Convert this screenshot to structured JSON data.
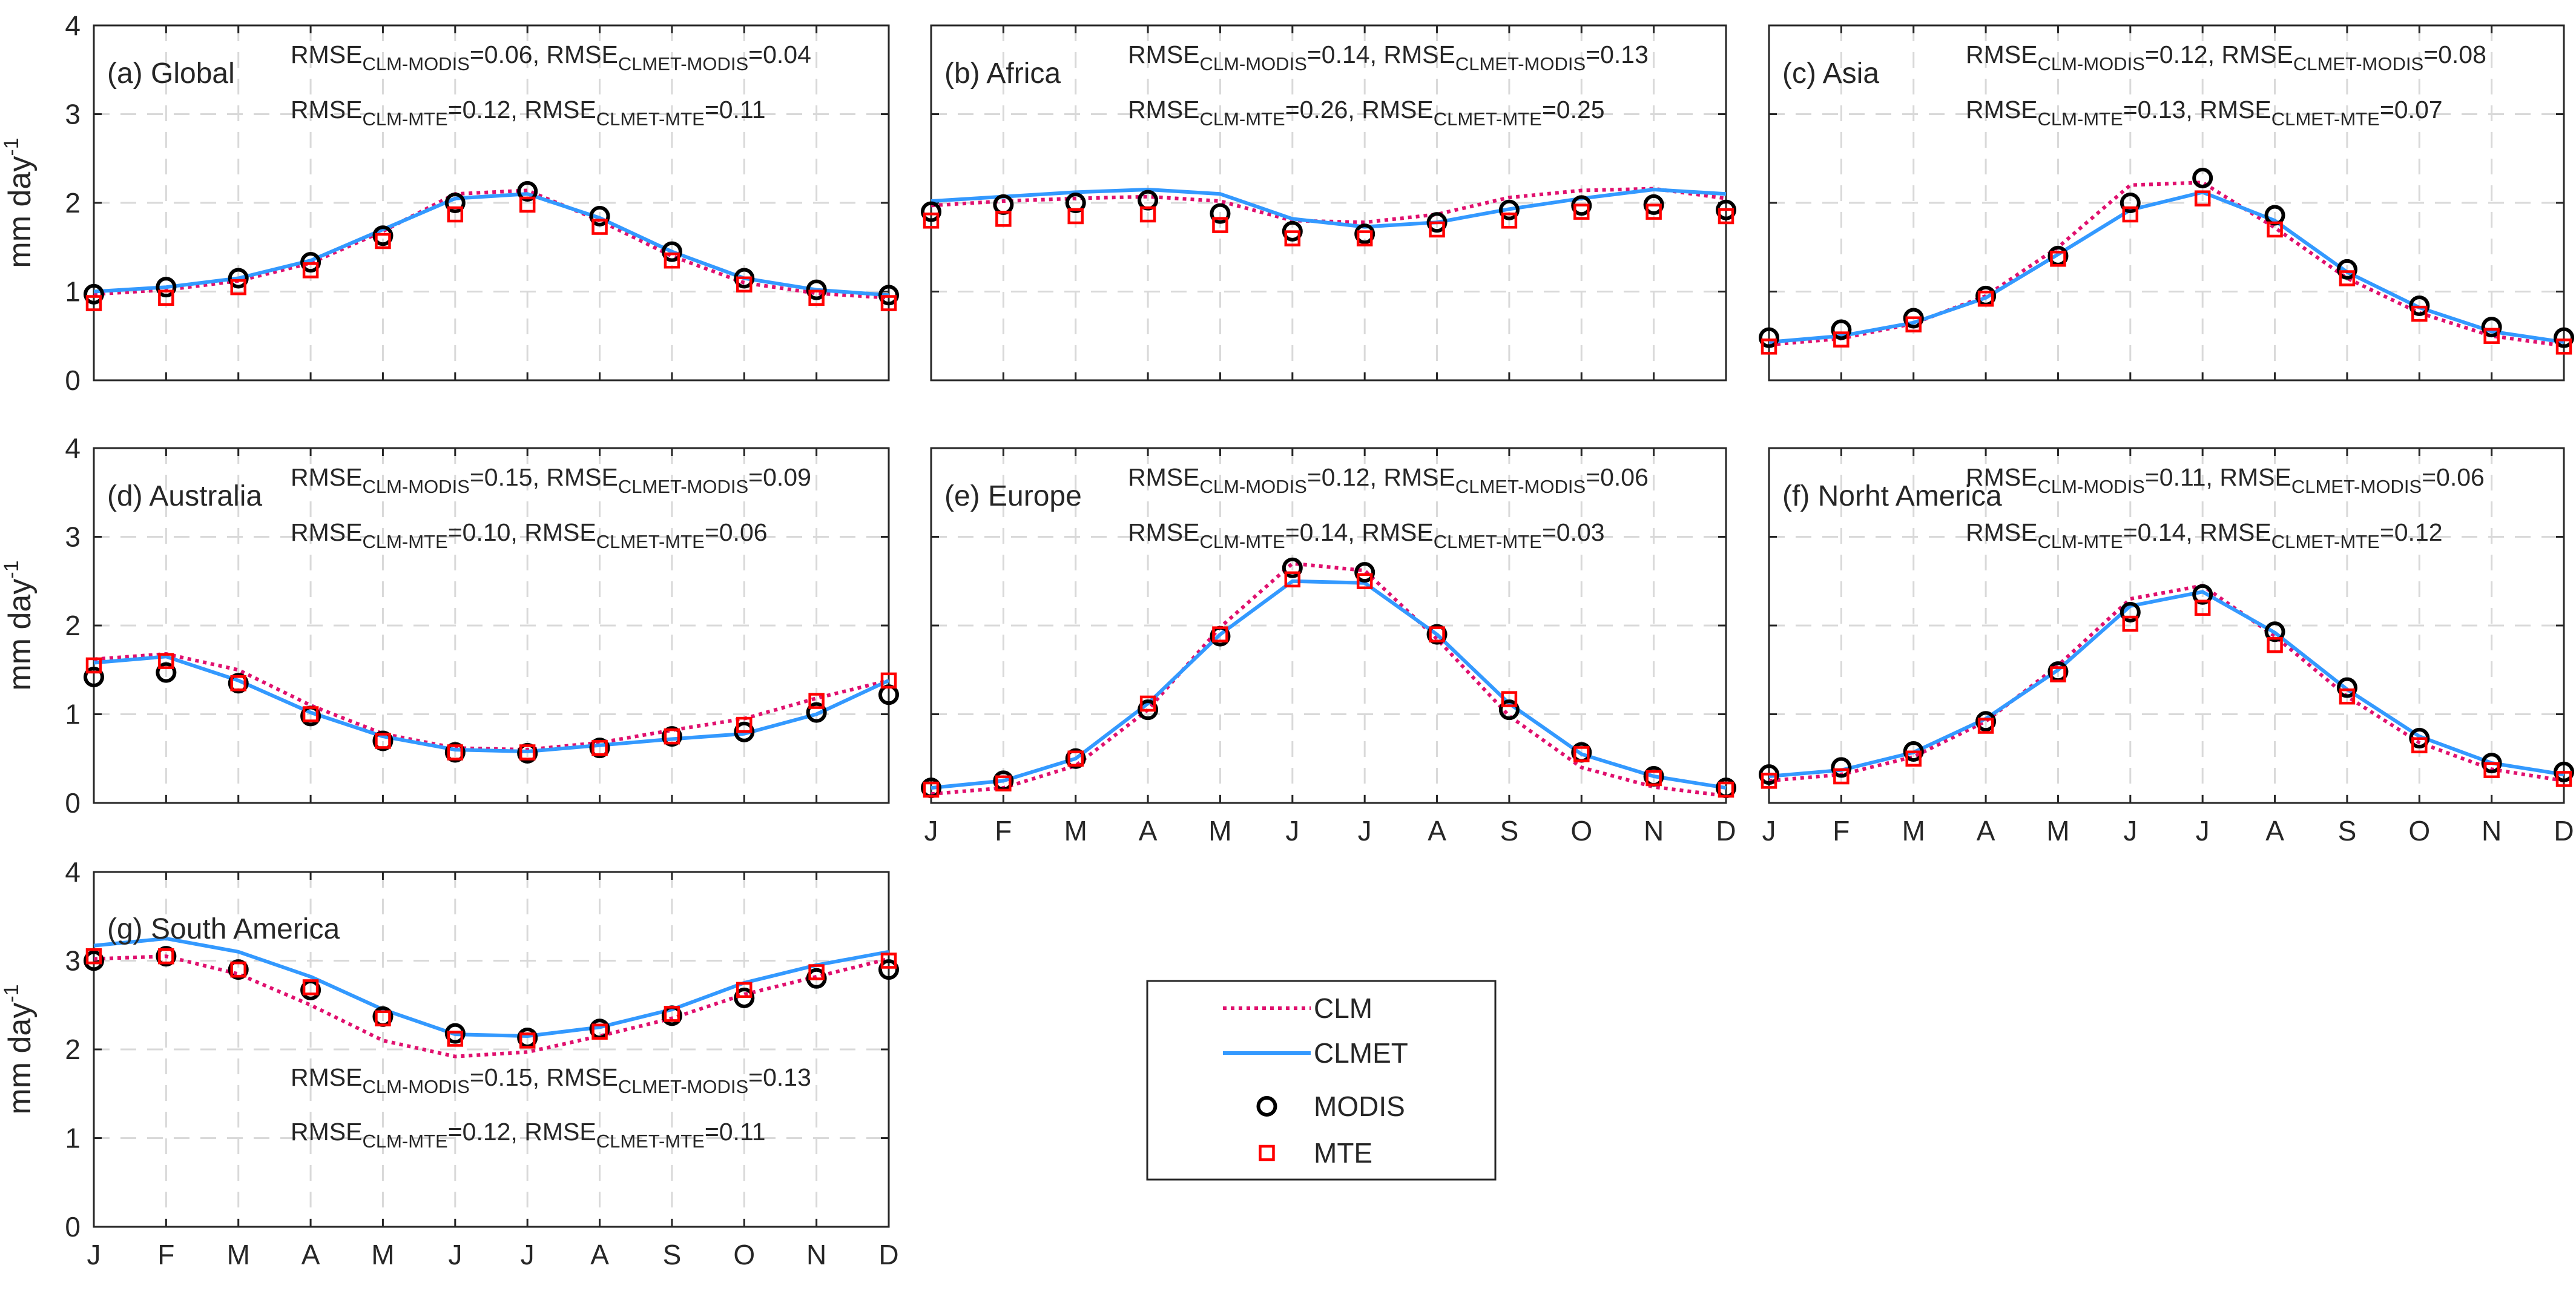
{
  "chart_data": {
    "type": "line",
    "ylabel": "mm day",
    "ylabel_sup": "-1",
    "ylim": [
      0,
      4
    ],
    "yticks": [
      "0",
      "1",
      "2",
      "3",
      "4"
    ],
    "categories": [
      "J",
      "F",
      "M",
      "A",
      "M",
      "J",
      "J",
      "A",
      "S",
      "O",
      "N",
      "D"
    ],
    "legend": [
      {
        "name": "CLM",
        "color": "#e0106e",
        "style": "dotted-line"
      },
      {
        "name": "CLMET",
        "color": "#3399ff",
        "style": "solid-line"
      },
      {
        "name": "MODIS",
        "color": "#000000",
        "style": "circle-marker"
      },
      {
        "name": "MTE",
        "color": "#ff0000",
        "style": "square-marker"
      }
    ],
    "panels": [
      {
        "title": "(a) Global",
        "rmse": [
          {
            "a_sub": "CLM-MODIS",
            "a_val": "=0.06, ",
            "b_sub": "CLMET-MODIS",
            "b_val": "=0.04"
          },
          {
            "a_sub": "CLM-MTE",
            "a_val": "=0.12, ",
            "b_sub": "CLMET-MTE",
            "b_val": "=0.11"
          }
        ],
        "rmse_position": "top",
        "series": {
          "CLM": [
            0.97,
            1.02,
            1.12,
            1.32,
            1.68,
            2.1,
            2.14,
            1.8,
            1.4,
            1.1,
            0.98,
            0.93
          ],
          "CLMET": [
            1.0,
            1.05,
            1.15,
            1.35,
            1.7,
            2.05,
            2.1,
            1.83,
            1.45,
            1.15,
            1.02,
            0.96
          ],
          "MODIS": [
            0.97,
            1.05,
            1.15,
            1.33,
            1.63,
            2.0,
            2.13,
            1.85,
            1.45,
            1.15,
            1.02,
            0.96
          ],
          "MTE": [
            0.87,
            0.93,
            1.05,
            1.24,
            1.57,
            1.87,
            1.98,
            1.73,
            1.35,
            1.08,
            0.93,
            0.87
          ]
        }
      },
      {
        "title": "(b) Africa",
        "rmse": [
          {
            "a_sub": "CLM-MODIS",
            "a_val": "=0.14, ",
            "b_sub": "CLMET-MODIS",
            "b_val": "=0.13"
          },
          {
            "a_sub": "CLM-MTE",
            "a_val": "=0.26, ",
            "b_sub": "CLMET-MTE",
            "b_val": "=0.25"
          }
        ],
        "rmse_position": "top",
        "series": {
          "CLM": [
            1.97,
            2.02,
            2.05,
            2.07,
            2.02,
            1.8,
            1.78,
            1.87,
            2.06,
            2.14,
            2.16,
            2.05
          ],
          "CLMET": [
            2.02,
            2.07,
            2.12,
            2.15,
            2.1,
            1.82,
            1.73,
            1.78,
            1.93,
            2.05,
            2.15,
            2.1
          ],
          "MODIS": [
            1.9,
            1.98,
            2.0,
            2.03,
            1.88,
            1.68,
            1.65,
            1.78,
            1.92,
            1.97,
            1.98,
            1.92
          ],
          "MTE": [
            1.8,
            1.82,
            1.85,
            1.87,
            1.75,
            1.6,
            1.6,
            1.7,
            1.8,
            1.9,
            1.9,
            1.85
          ]
        }
      },
      {
        "title": "(c) Asia",
        "rmse": [
          {
            "a_sub": "CLM-MODIS",
            "a_val": "=0.12, ",
            "b_sub": "CLMET-MODIS",
            "b_val": "=0.08"
          },
          {
            "a_sub": "CLM-MTE",
            "a_val": "=0.13, ",
            "b_sub": "CLMET-MTE",
            "b_val": "=0.07"
          }
        ],
        "rmse_position": "top",
        "series": {
          "CLM": [
            0.4,
            0.47,
            0.64,
            0.95,
            1.5,
            2.2,
            2.23,
            1.72,
            1.15,
            0.76,
            0.5,
            0.39
          ],
          "CLMET": [
            0.43,
            0.5,
            0.65,
            0.93,
            1.42,
            1.92,
            2.12,
            1.8,
            1.22,
            0.82,
            0.55,
            0.43
          ],
          "MODIS": [
            0.48,
            0.57,
            0.7,
            0.95,
            1.4,
            2.0,
            2.28,
            1.86,
            1.25,
            0.84,
            0.6,
            0.48
          ],
          "MTE": [
            0.38,
            0.46,
            0.63,
            0.92,
            1.37,
            1.87,
            2.05,
            1.7,
            1.15,
            0.75,
            0.5,
            0.38
          ]
        }
      },
      {
        "title": "(d) Australia",
        "rmse": [
          {
            "a_sub": "CLM-MODIS",
            "a_val": "=0.15, ",
            "b_sub": "CLMET-MODIS",
            "b_val": "=0.09"
          },
          {
            "a_sub": "CLM-MTE",
            "a_val": "=0.10, ",
            "b_sub": "CLMET-MTE",
            "b_val": "=0.06"
          }
        ],
        "rmse_position": "top",
        "series": {
          "CLM": [
            1.62,
            1.68,
            1.5,
            1.1,
            0.78,
            0.62,
            0.6,
            0.68,
            0.82,
            0.95,
            1.18,
            1.38
          ],
          "CLMET": [
            1.58,
            1.65,
            1.38,
            1.02,
            0.75,
            0.6,
            0.58,
            0.65,
            0.72,
            0.78,
            1.0,
            1.38
          ],
          "MODIS": [
            1.42,
            1.47,
            1.35,
            0.98,
            0.7,
            0.57,
            0.56,
            0.62,
            0.75,
            0.8,
            1.02,
            1.22
          ],
          "MTE": [
            1.55,
            1.6,
            1.35,
            1.0,
            0.7,
            0.57,
            0.57,
            0.62,
            0.75,
            0.88,
            1.15,
            1.38
          ]
        }
      },
      {
        "title": "(e) Europe",
        "rmse": [
          {
            "a_sub": "CLM-MODIS",
            "a_val": "=0.12, ",
            "b_sub": "CLMET-MODIS",
            "b_val": "=0.06"
          },
          {
            "a_sub": "CLM-MTE",
            "a_val": "=0.14, ",
            "b_sub": "CLMET-MTE",
            "b_val": "=0.03"
          }
        ],
        "rmse_position": "top",
        "series": {
          "CLM": [
            0.1,
            0.17,
            0.42,
            1.05,
            1.98,
            2.7,
            2.62,
            1.85,
            0.98,
            0.4,
            0.18,
            0.08
          ],
          "CLMET": [
            0.17,
            0.25,
            0.5,
            1.12,
            1.9,
            2.5,
            2.48,
            1.9,
            1.12,
            0.55,
            0.3,
            0.17
          ],
          "MODIS": [
            0.17,
            0.25,
            0.5,
            1.05,
            1.88,
            2.65,
            2.6,
            1.9,
            1.05,
            0.57,
            0.3,
            0.17
          ],
          "MTE": [
            0.15,
            0.22,
            0.5,
            1.12,
            1.9,
            2.52,
            2.5,
            1.9,
            1.17,
            0.55,
            0.28,
            0.15
          ]
        }
      },
      {
        "title": "(f) Norht America",
        "rmse": [
          {
            "a_sub": "CLM-MODIS",
            "a_val": "=0.11, ",
            "b_sub": "CLMET-MODIS",
            "b_val": "=0.06"
          },
          {
            "a_sub": "CLM-MTE",
            "a_val": "=0.14, ",
            "b_sub": "CLMET-MTE",
            "b_val": "=0.12"
          }
        ],
        "rmse_position": "top",
        "series": {
          "CLM": [
            0.25,
            0.32,
            0.52,
            0.92,
            1.55,
            2.3,
            2.45,
            1.88,
            1.2,
            0.68,
            0.38,
            0.25
          ],
          "CLMET": [
            0.3,
            0.37,
            0.57,
            0.95,
            1.5,
            2.22,
            2.38,
            1.92,
            1.28,
            0.75,
            0.45,
            0.32
          ],
          "MODIS": [
            0.32,
            0.4,
            0.58,
            0.92,
            1.48,
            2.15,
            2.35,
            1.93,
            1.3,
            0.73,
            0.45,
            0.35
          ],
          "MTE": [
            0.25,
            0.3,
            0.5,
            0.87,
            1.45,
            2.02,
            2.2,
            1.78,
            1.2,
            0.65,
            0.37,
            0.27
          ]
        }
      },
      {
        "title": "(g) South America",
        "rmse": [
          {
            "a_sub": "CLM-MODIS",
            "a_val": "=0.15, ",
            "b_sub": "CLMET-MODIS",
            "b_val": "=0.13"
          },
          {
            "a_sub": "CLM-MTE",
            "a_val": "=0.12, ",
            "b_sub": "CLMET-MTE",
            "b_val": "=0.11"
          }
        ],
        "rmse_position": "bottom",
        "series": {
          "CLM": [
            3.02,
            3.05,
            2.85,
            2.5,
            2.1,
            1.92,
            1.97,
            2.15,
            2.35,
            2.62,
            2.82,
            3.02
          ],
          "CLMET": [
            3.17,
            3.25,
            3.1,
            2.82,
            2.45,
            2.17,
            2.15,
            2.25,
            2.45,
            2.75,
            2.95,
            3.1
          ],
          "MODIS": [
            3.0,
            3.05,
            2.9,
            2.67,
            2.37,
            2.18,
            2.13,
            2.23,
            2.38,
            2.58,
            2.8,
            2.9
          ],
          "MTE": [
            3.05,
            3.05,
            2.9,
            2.7,
            2.35,
            2.12,
            2.1,
            2.2,
            2.4,
            2.67,
            2.87,
            3.0
          ]
        }
      }
    ]
  }
}
